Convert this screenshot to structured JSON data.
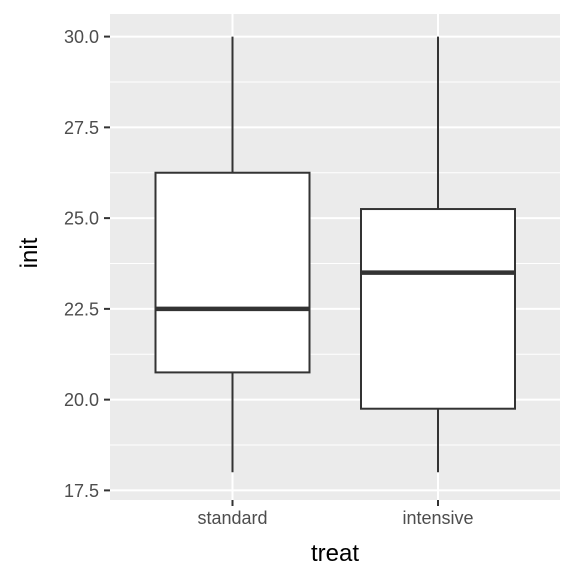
{
  "chart_data": {
    "type": "box",
    "xlabel": "treat",
    "ylabel": "init",
    "ylim": [
      17.5,
      30.0
    ],
    "y_ticks": [
      "17.5",
      "20.0",
      "22.5",
      "25.0",
      "27.5",
      "30.0"
    ],
    "categories": [
      "standard",
      "intensive"
    ],
    "boxes": [
      {
        "category": "standard",
        "min": 18.0,
        "q1": 20.75,
        "median": 22.5,
        "q3": 26.25,
        "max": 30.0
      },
      {
        "category": "intensive",
        "min": 18.0,
        "q1": 19.75,
        "median": 23.5,
        "q3": 25.25,
        "max": 30.0
      }
    ],
    "grid": true,
    "colors": {
      "panel": "#ebebeb",
      "grid": "#ffffff",
      "box_fill": "#ffffff",
      "box_line": "#333333"
    }
  }
}
